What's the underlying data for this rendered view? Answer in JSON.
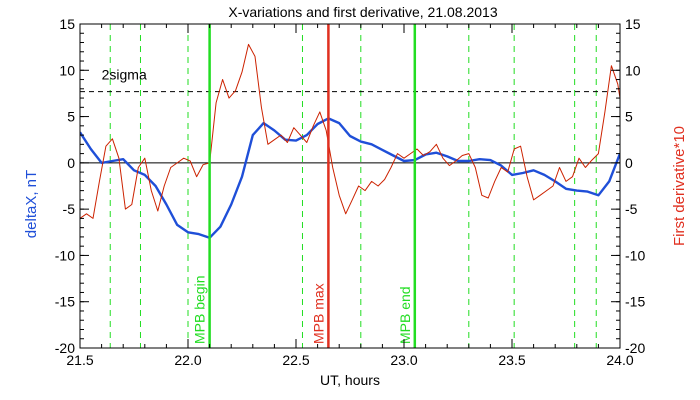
{
  "chart_data": {
    "type": "line",
    "title": "X-variations and first derivative, 21.08.2013",
    "xlabel": "UT, hours",
    "ylabel_left": "deltaX, nT",
    "ylabel_right": "First derivative*10",
    "xlim": [
      21.5,
      24.0
    ],
    "ylim": [
      -20,
      15
    ],
    "x_ticks": [
      "21.5",
      "22.0",
      "22.5",
      "23.0",
      "23.5",
      "24.0"
    ],
    "y_ticks_left": [
      "15",
      "10",
      "5",
      "0",
      "-5",
      "-10",
      "-15",
      "-20"
    ],
    "y_ticks_right": [
      "15",
      "10",
      "5",
      "0",
      "-5",
      "-10",
      "-15",
      "-20"
    ],
    "threshold": {
      "label": "2sigma",
      "value": 7.7,
      "color": "#000000"
    },
    "zero_line": 0,
    "markers": [
      {
        "label": "MPB begin",
        "x": 22.1,
        "color": "#22dd22"
      },
      {
        "label": "MPB max",
        "x": 22.65,
        "color": "#e03020"
      },
      {
        "label": "MPB end",
        "x": 23.05,
        "color": "#22dd22"
      }
    ],
    "dashed_verticals": [
      21.64,
      21.78,
      22.0,
      22.53,
      22.8,
      23.3,
      23.51,
      23.79,
      23.89
    ],
    "series": [
      {
        "name": "deltaX",
        "color": "#1f4fd8",
        "x": [
          21.5,
          21.55,
          21.6,
          21.65,
          21.7,
          21.75,
          21.8,
          21.85,
          21.9,
          21.95,
          22.0,
          22.05,
          22.1,
          22.15,
          22.2,
          22.25,
          22.3,
          22.35,
          22.4,
          22.45,
          22.5,
          22.55,
          22.6,
          22.65,
          22.7,
          22.75,
          22.8,
          22.85,
          22.9,
          22.95,
          23.0,
          23.05,
          23.1,
          23.15,
          23.2,
          23.25,
          23.3,
          23.35,
          23.4,
          23.45,
          23.5,
          23.55,
          23.6,
          23.65,
          23.7,
          23.75,
          23.8,
          23.85,
          23.9,
          23.95,
          24.0
        ],
        "values": [
          3.3,
          1.5,
          0.0,
          0.2,
          0.4,
          -0.8,
          -1.3,
          -2.5,
          -4.5,
          -6.7,
          -7.5,
          -7.7,
          -8.1,
          -6.9,
          -4.5,
          -1.5,
          3.0,
          4.3,
          3.5,
          2.5,
          2.4,
          3.0,
          4.2,
          4.8,
          4.3,
          2.9,
          2.3,
          2.0,
          1.4,
          0.8,
          0.2,
          0.3,
          0.9,
          1.1,
          0.7,
          0.2,
          0.2,
          0.4,
          0.3,
          -0.3,
          -1.3,
          -1.1,
          -0.8,
          -1.3,
          -2.0,
          -2.8,
          -3.0,
          -3.1,
          -3.5,
          -2.0,
          1.0
        ]
      },
      {
        "name": "derivative",
        "color": "#cc2200",
        "x": [
          21.5,
          21.53,
          21.56,
          21.59,
          21.62,
          21.65,
          21.68,
          21.71,
          21.74,
          21.77,
          21.8,
          21.83,
          21.86,
          21.89,
          21.92,
          21.95,
          21.98,
          22.01,
          22.04,
          22.07,
          22.1,
          22.13,
          22.16,
          22.19,
          22.22,
          22.25,
          22.28,
          22.31,
          22.34,
          22.37,
          22.4,
          22.43,
          22.46,
          22.49,
          22.52,
          22.55,
          22.58,
          22.61,
          22.64,
          22.67,
          22.7,
          22.73,
          22.76,
          22.79,
          22.82,
          22.85,
          22.88,
          22.91,
          22.94,
          22.97,
          23.0,
          23.03,
          23.06,
          23.09,
          23.12,
          23.15,
          23.18,
          23.21,
          23.24,
          23.27,
          23.3,
          23.33,
          23.36,
          23.39,
          23.42,
          23.45,
          23.48,
          23.51,
          23.54,
          23.57,
          23.6,
          23.63,
          23.66,
          23.69,
          23.72,
          23.75,
          23.78,
          23.81,
          23.84,
          23.87,
          23.9,
          23.93,
          23.96,
          23.99,
          24.0
        ],
        "values": [
          -6.0,
          -5.5,
          -6.0,
          -2.0,
          1.8,
          2.6,
          0.5,
          -5.0,
          -4.5,
          -0.5,
          0.5,
          -3.0,
          -5.2,
          -2.5,
          -0.5,
          0.0,
          0.5,
          0.2,
          -1.5,
          -0.2,
          0.0,
          6.5,
          9.0,
          7.0,
          7.8,
          9.8,
          12.8,
          11.5,
          6.0,
          2.0,
          2.5,
          3.0,
          2.2,
          3.8,
          3.0,
          2.2,
          4.0,
          5.5,
          3.5,
          -0.5,
          -3.5,
          -5.5,
          -4.0,
          -2.5,
          -3.0,
          -2.0,
          -2.5,
          -1.8,
          -0.5,
          1.0,
          0.5,
          1.0,
          1.5,
          0.8,
          1.2,
          2.0,
          0.5,
          -0.3,
          0.2,
          0.8,
          1.0,
          -0.5,
          -3.5,
          -3.8,
          -2.0,
          -0.5,
          -1.0,
          1.5,
          1.8,
          -1.5,
          -4.0,
          -3.5,
          -3.0,
          -2.5,
          -0.5,
          -2.0,
          -1.5,
          0.5,
          -0.5,
          0.3,
          1.0,
          5.5,
          10.5,
          8.5,
          7.0
        ]
      }
    ]
  }
}
